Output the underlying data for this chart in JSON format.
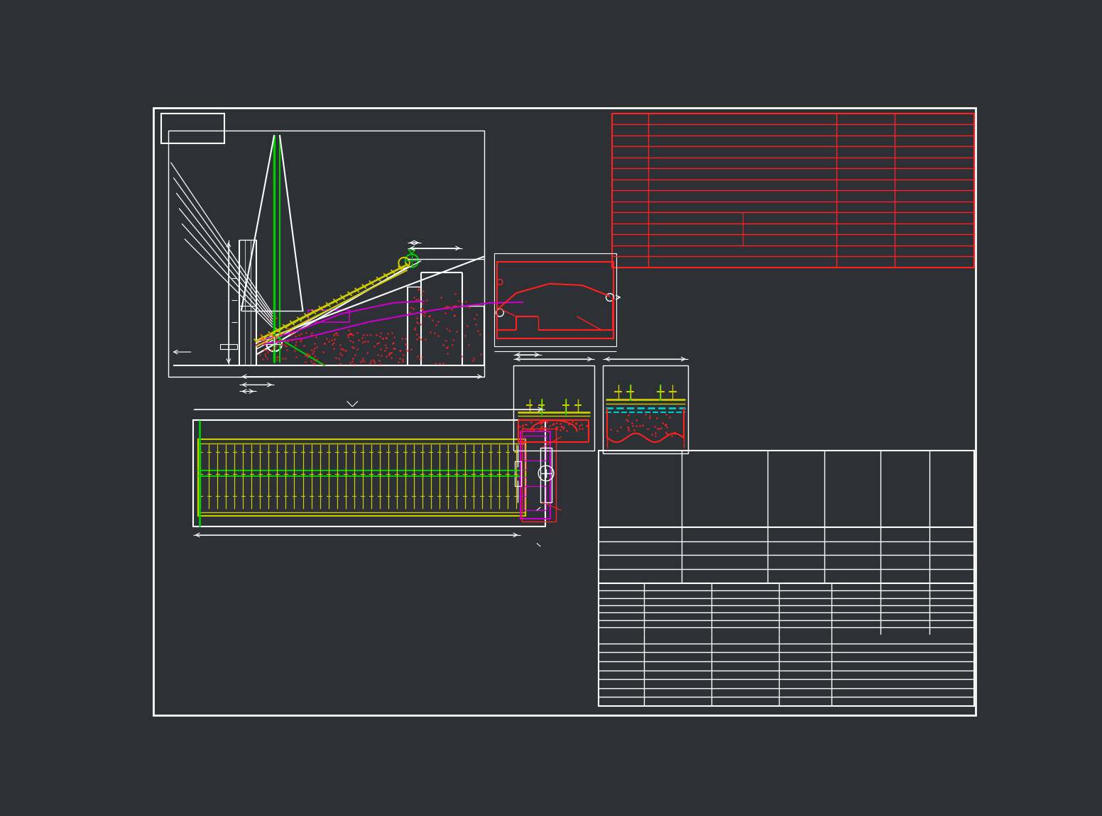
{
  "bg": "#2d3035",
  "white": "#ffffff",
  "red": "#ff2020",
  "yellow": "#cccc00",
  "green": "#00cc00",
  "magenta": "#cc00cc",
  "cyan": "#00cccc",
  "figsize": [
    15.52,
    11.5
  ],
  "dpi": 100
}
